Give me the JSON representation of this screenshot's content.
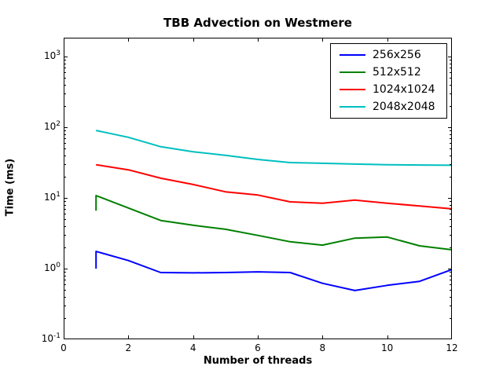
{
  "figure": {
    "title": "TBB Advection on Westmere",
    "xlabel": "Number of threads",
    "ylabel": "Time (ms)"
  },
  "axes": {
    "x_tick_values": [
      0,
      2,
      4,
      6,
      8,
      10,
      12
    ],
    "x_tick_labels": [
      "0",
      "2",
      "4",
      "6",
      "8",
      "10",
      "12"
    ],
    "y_tick_exponents": [
      -1,
      0,
      1,
      2,
      3
    ],
    "y_scale": "log",
    "frame_color": "#000000"
  },
  "chart_data": {
    "type": "line",
    "title": "TBB Advection on Westmere",
    "xlabel": "Number of threads",
    "ylabel": "Time (ms)",
    "xlim": [
      0,
      12
    ],
    "ylim_log10": [
      -1,
      3.267
    ],
    "grid": false,
    "legend_position": "upper right",
    "series": [
      {
        "name": "256x256",
        "color": "#0000ff",
        "x": [
          1,
          1,
          2,
          3,
          4,
          5,
          6,
          7,
          8,
          9,
          10,
          11,
          12
        ],
        "y": [
          1.0,
          1.75,
          1.3,
          0.88,
          0.87,
          0.88,
          0.9,
          0.88,
          0.62,
          0.49,
          0.58,
          0.66,
          0.97
        ]
      },
      {
        "name": "512x512",
        "color": "#008000",
        "x": [
          1,
          1,
          2,
          3,
          4,
          5,
          6,
          7,
          8,
          9,
          10,
          11,
          12
        ],
        "y": [
          6.6,
          10.8,
          7.2,
          4.8,
          4.1,
          3.6,
          2.95,
          2.4,
          2.15,
          2.7,
          2.8,
          2.1,
          1.85
        ]
      },
      {
        "name": "1024x1024",
        "color": "#ff0000",
        "x": [
          1,
          2,
          3,
          4,
          5,
          6,
          7,
          8,
          9,
          10,
          11,
          12
        ],
        "y": [
          29.5,
          25.0,
          19.0,
          15.5,
          12.2,
          11.0,
          8.8,
          8.4,
          9.3,
          8.4,
          7.7,
          7.0
        ]
      },
      {
        "name": "2048x2048",
        "color": "#00bfbf",
        "x": [
          1,
          2,
          3,
          4,
          5,
          6,
          7,
          8,
          9,
          10,
          11,
          12
        ],
        "y": [
          90,
          72,
          53,
          45,
          40,
          35,
          31.6,
          30.9,
          30.1,
          29.4,
          29.2,
          29.0
        ]
      }
    ]
  }
}
